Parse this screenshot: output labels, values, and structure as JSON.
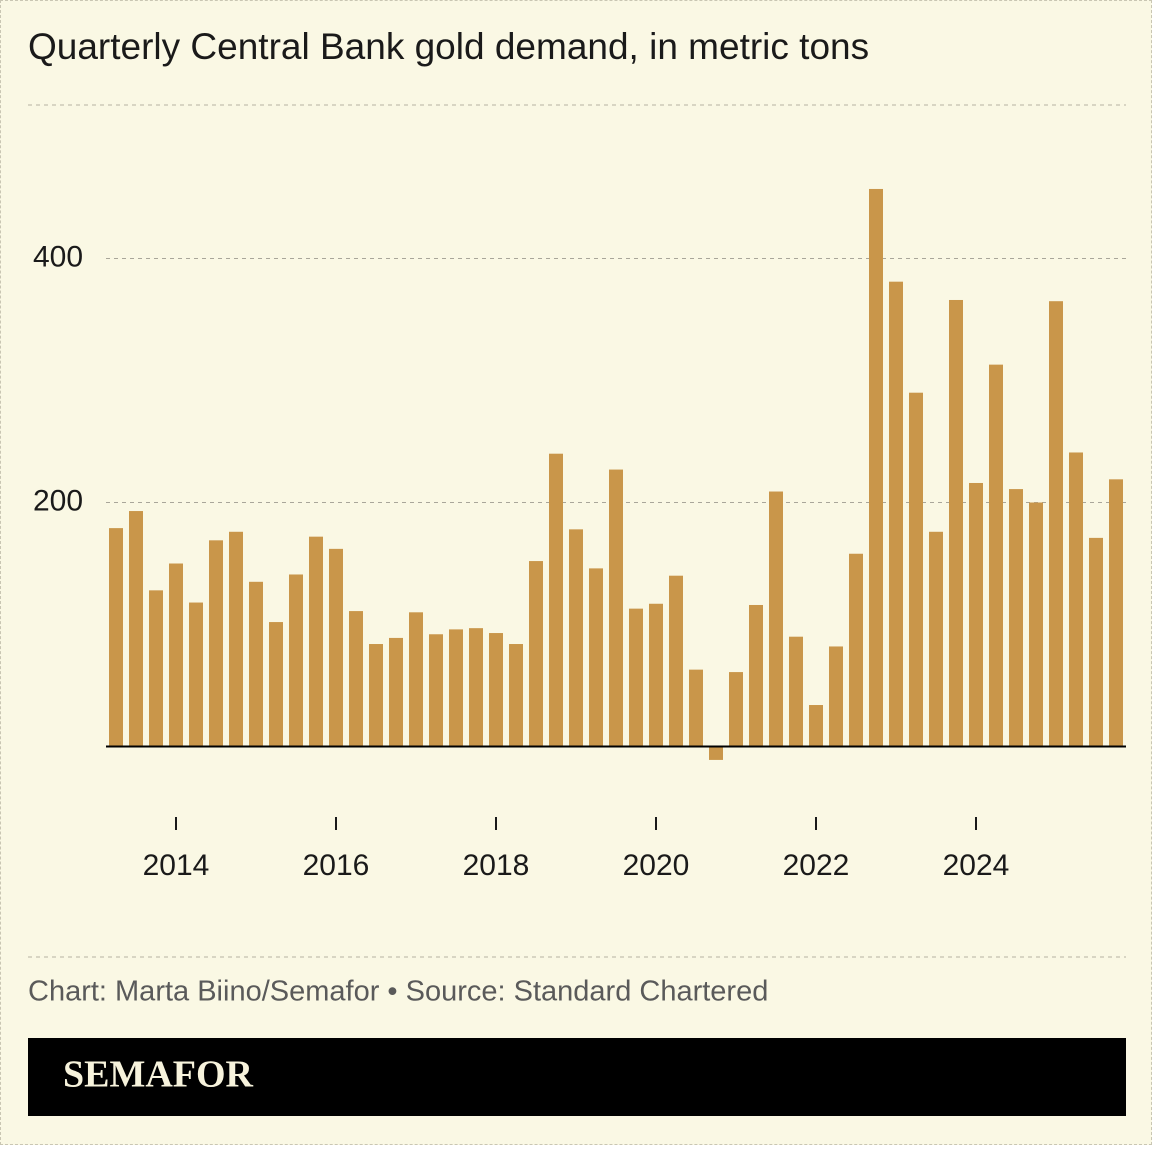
{
  "chart_data": {
    "type": "bar",
    "title": "Quarterly Central Bank gold demand, in metric tons",
    "source": "Chart: Marta Biino/Semafor • Source: Standard Chartered",
    "brand": "SEMAFOR",
    "x": [
      2013.25,
      2013.5,
      2013.75,
      2014,
      2014.25,
      2014.5,
      2014.75,
      2015,
      2015.25,
      2015.5,
      2015.75,
      2016,
      2016.25,
      2016.5,
      2016.75,
      2017,
      2017.25,
      2017.5,
      2017.75,
      2018,
      2018.25,
      2018.5,
      2018.75,
      2019,
      2019.25,
      2019.5,
      2019.75,
      2020,
      2020.25,
      2020.5,
      2020.75,
      2021,
      2021.25,
      2021.5,
      2021.75,
      2022,
      2022.25,
      2022.5,
      2022.75,
      2023,
      2023.25,
      2023.5,
      2023.75,
      2024,
      2024.25,
      2024.5,
      2024.75,
      2025,
      2025.25,
      2025.5,
      2025.75
    ],
    "values": [
      179,
      193,
      128,
      150,
      118,
      169,
      176,
      135,
      102,
      141,
      172,
      162,
      111,
      84,
      89,
      110,
      92,
      96,
      97,
      93,
      84,
      152,
      240,
      178,
      146,
      227,
      113,
      117,
      140,
      63,
      -11,
      61,
      116,
      209,
      90,
      34,
      82,
      158,
      457,
      381,
      290,
      176,
      366,
      216,
      313,
      211,
      200,
      365,
      241,
      171,
      219
    ],
    "color": "#c9964a",
    "xlim": [
      2013.125,
      2025.875
    ],
    "xticks": [
      2014,
      2016,
      2018,
      2020,
      2022,
      2024
    ],
    "ylim": [
      -20,
      525
    ],
    "yticks": [
      200,
      400
    ],
    "grid": true
  }
}
